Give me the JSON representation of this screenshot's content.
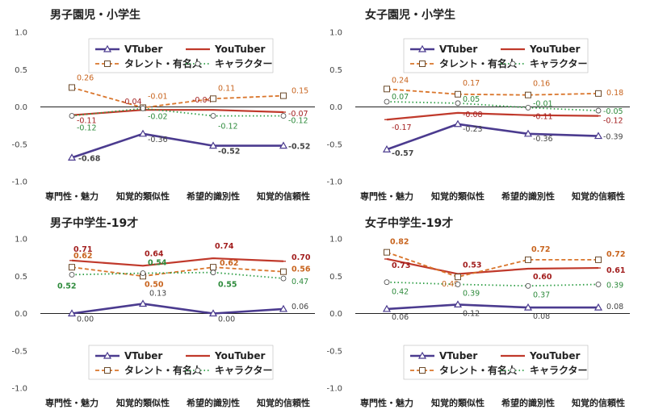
{
  "colors": {
    "vtuber": "#4b3b8f",
    "youtuber": "#c0392b",
    "talent": "#d9752b",
    "character": "#2e9e45",
    "label_vtuber": "#444444",
    "label_youtuber": "#a21e1e",
    "label_talent": "#c8641e",
    "label_character": "#2e8b3c"
  },
  "legend_labels": [
    "VTuber",
    "YouTuber",
    "タレント・有名人",
    "キャラクター"
  ],
  "chart_data": [
    {
      "type": "line",
      "title": "男子園児・小学生",
      "categories": [
        "専門性・魅力",
        "知覚的類似性",
        "希望的識別性",
        "知覚的信頼性"
      ],
      "yticks": [
        "1.0",
        "0.5",
        "0.0",
        "-0.5",
        "-1.0"
      ],
      "ylim": [
        -1.0,
        1.0
      ],
      "legend_position": "top",
      "series": [
        {
          "name": "VTuber",
          "values": [
            -0.68,
            -0.36,
            -0.52,
            -0.52
          ],
          "labels": [
            "-0.68",
            "-0.36",
            "-0.52",
            "-0.52"
          ]
        },
        {
          "name": "YouTuber",
          "values": [
            -0.11,
            -0.04,
            -0.04,
            -0.07
          ],
          "labels": [
            "-0.11",
            "-0.04",
            "-0.04",
            "-0.07"
          ]
        },
        {
          "name": "タレント・有名人",
          "values": [
            0.26,
            -0.01,
            0.11,
            0.15
          ],
          "labels": [
            "0.26",
            "-0.01",
            "0.11",
            "0.15"
          ]
        },
        {
          "name": "キャラクター",
          "values": [
            -0.12,
            -0.02,
            -0.12,
            -0.12
          ],
          "labels": [
            "-0.12",
            "-0.02",
            "-0.12",
            "-0.12"
          ]
        }
      ]
    },
    {
      "type": "line",
      "title": "女子園児・小学生",
      "categories": [
        "専門性・魅力",
        "知覚的類似性",
        "希望的識別性",
        "知覚的信頼性"
      ],
      "yticks": [
        "1.0",
        "0.5",
        "0.0",
        "-0.5",
        "-1.0"
      ],
      "ylim": [
        -1.0,
        1.0
      ],
      "legend_position": "top",
      "series": [
        {
          "name": "VTuber",
          "values": [
            -0.57,
            -0.23,
            -0.36,
            -0.39
          ],
          "labels": [
            "-0.57",
            "-0.23",
            "-0.36",
            "-0.39"
          ]
        },
        {
          "name": "YouTuber",
          "values": [
            -0.17,
            -0.08,
            -0.11,
            -0.12
          ],
          "labels": [
            "-0.17",
            "-0.08",
            "-0.11",
            "-0.12"
          ]
        },
        {
          "name": "タレント・有名人",
          "values": [
            0.24,
            0.17,
            0.16,
            0.18
          ],
          "labels": [
            "0.24",
            "0.17",
            "0.16",
            "0.18"
          ]
        },
        {
          "name": "キャラクター",
          "values": [
            0.07,
            0.05,
            -0.01,
            -0.05
          ],
          "labels": [
            "0.07",
            "0.05",
            "-0.01",
            "-0.05"
          ]
        }
      ]
    },
    {
      "type": "line",
      "title": "男子中学生-19才",
      "categories": [
        "専門性・魅力",
        "知覚的類似性",
        "希望的識別性",
        "知覚的信頼性"
      ],
      "yticks": [
        "1.0",
        "0.5",
        "0.0",
        "-0.5",
        "-1.0"
      ],
      "ylim": [
        -1.0,
        1.0
      ],
      "legend_position": "bottom",
      "series": [
        {
          "name": "VTuber",
          "values": [
            0.0,
            0.13,
            0.0,
            0.06
          ],
          "labels": [
            "0.00",
            "0.13",
            "0.00",
            "0.06"
          ]
        },
        {
          "name": "YouTuber",
          "values": [
            0.71,
            0.64,
            0.74,
            0.7
          ],
          "labels": [
            "0.71",
            "0.64",
            "0.74",
            "0.70"
          ]
        },
        {
          "name": "タレント・有名人",
          "values": [
            0.62,
            0.5,
            0.62,
            0.56
          ],
          "labels": [
            "0.62",
            "0.50",
            "0.62",
            "0.56"
          ]
        },
        {
          "name": "キャラクター",
          "values": [
            0.52,
            0.54,
            0.55,
            0.47
          ],
          "labels": [
            "0.52",
            "0.54",
            "0.55",
            "0.47"
          ]
        }
      ]
    },
    {
      "type": "line",
      "title": "女子中学生-19才",
      "categories": [
        "専門性・魅力",
        "知覚的類似性",
        "希望的識別性",
        "知覚的信頼性"
      ],
      "yticks": [
        "1.0",
        "0.5",
        "0.0",
        "-0.5",
        "-1.0"
      ],
      "ylim": [
        -1.0,
        1.0
      ],
      "legend_position": "bottom",
      "series": [
        {
          "name": "VTuber",
          "values": [
            0.06,
            0.12,
            0.08,
            0.08
          ],
          "labels": [
            "0.06",
            "0.12",
            "0.08",
            "0.08"
          ]
        },
        {
          "name": "YouTuber",
          "values": [
            0.73,
            0.53,
            0.6,
            0.61
          ],
          "labels": [
            "0.73",
            "0.53",
            "0.60",
            "0.61"
          ]
        },
        {
          "name": "タレント・有名人",
          "values": [
            0.82,
            0.49,
            0.72,
            0.72
          ],
          "labels": [
            "0.82",
            "0.49",
            "0.72",
            "0.72"
          ]
        },
        {
          "name": "キャラクター",
          "values": [
            0.42,
            0.39,
            0.37,
            0.39
          ],
          "labels": [
            "0.42",
            "0.39",
            "0.37",
            "0.39"
          ]
        }
      ]
    }
  ]
}
